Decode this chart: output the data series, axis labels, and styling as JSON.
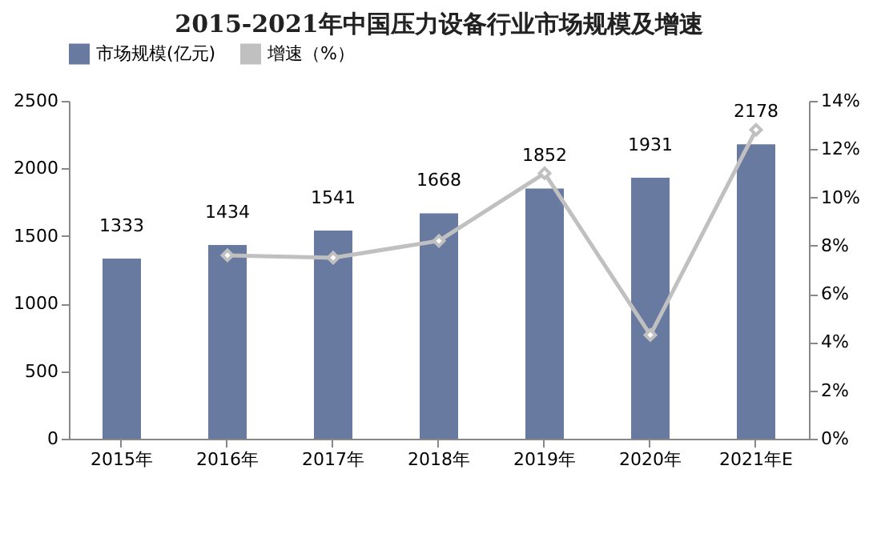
{
  "chart_data": {
    "type": "bar",
    "title": "2015-2021年中国压力设备行业市场规模及增速",
    "categories": [
      "2015年",
      "2016年",
      "2017年",
      "2018年",
      "2019年",
      "2020年",
      "2021年E"
    ],
    "series": [
      {
        "name": "市场规模(亿元)",
        "color": "#687aa0",
        "values": [
          1333,
          1434,
          1541,
          1668,
          1852,
          1931,
          2178
        ],
        "value_labels": [
          "1333",
          "1434",
          "1541",
          "1668",
          "1852",
          "1931",
          "2178"
        ]
      },
      {
        "name": "增速（%）",
        "type": "line",
        "axis": "y2",
        "color": "#c0c0c0",
        "marker": "diamond",
        "values": [
          null,
          7.6,
          7.5,
          8.2,
          11.0,
          4.3,
          12.8
        ]
      }
    ],
    "ylim": [
      0,
      2500
    ],
    "yticks": [
      0,
      500,
      1000,
      1500,
      2000,
      2500
    ],
    "y2lim": [
      0,
      14
    ],
    "y2ticks": [
      {
        "value": 0,
        "label": "0%"
      },
      {
        "value": 2,
        "label": "2%"
      },
      {
        "value": 4,
        "label": "4%"
      },
      {
        "value": 6,
        "label": "6%"
      },
      {
        "value": 8,
        "label": "8%"
      },
      {
        "value": 10,
        "label": "10%"
      },
      {
        "value": 12,
        "label": "12%"
      },
      {
        "value": 14,
        "label": "14%"
      }
    ],
    "legend": "top",
    "grid": false
  }
}
